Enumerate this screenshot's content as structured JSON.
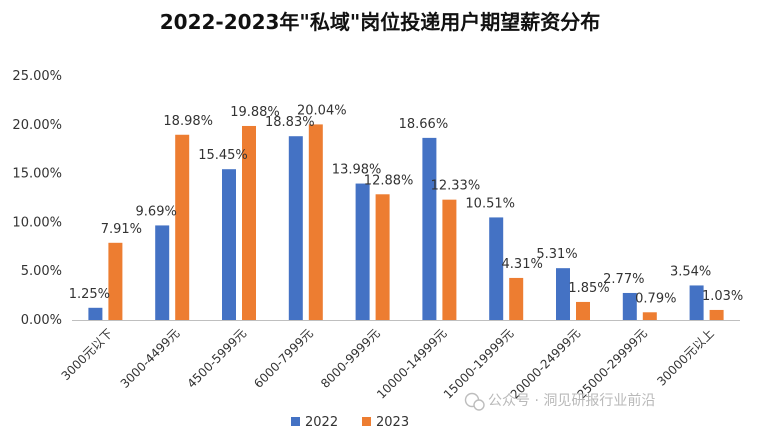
{
  "chart_data": {
    "type": "bar",
    "title": "2022-2023年\"私域\"岗位投递用户期望薪资分布",
    "xlabel": "",
    "ylabel": "",
    "ylim": [
      0,
      25
    ],
    "yticks": [
      0,
      5,
      10,
      15,
      20,
      25
    ],
    "ytick_labels": [
      "0.00%",
      "5.00%",
      "10.00%",
      "15.00%",
      "20.00%",
      "25.00%"
    ],
    "grid": false,
    "legend_position": "bottom",
    "categories": [
      "3000元以下",
      "3000-4499元",
      "4500-5999元",
      "6000-7999元",
      "8000-9999元",
      "10000-14999元",
      "15000-19999元",
      "20000-24999元",
      "25000-29999元",
      "30000元以上"
    ],
    "series": [
      {
        "name": "2022",
        "color": "#4472C4",
        "values": [
          1.25,
          9.69,
          15.45,
          18.83,
          13.98,
          18.66,
          10.51,
          5.31,
          2.77,
          3.54
        ],
        "labels": [
          "1.25%",
          "9.69%",
          "15.45%",
          "18.83%",
          "13.98%",
          "18.66%",
          "10.51%",
          "5.31%",
          "2.77%",
          "3.54%"
        ]
      },
      {
        "name": "2023",
        "color": "#ED7D31",
        "values": [
          7.91,
          18.98,
          19.88,
          20.04,
          12.88,
          12.33,
          4.31,
          1.85,
          0.79,
          1.03
        ],
        "labels": [
          "7.91%",
          "18.98%",
          "19.88%",
          "20.04%",
          "12.88%",
          "12.33%",
          "4.31%",
          "1.85%",
          "0.79%",
          "1.03%"
        ]
      }
    ]
  },
  "watermark": {
    "text": "公众号 · 洞见研报行业前沿",
    "icon": "wechat-icon"
  }
}
